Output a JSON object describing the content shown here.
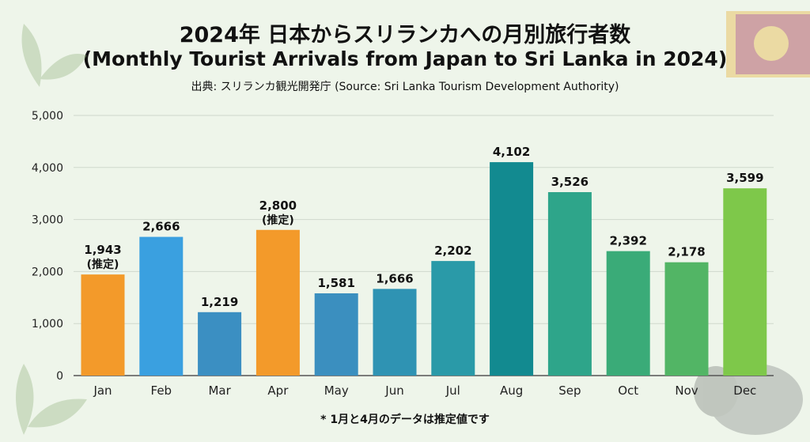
{
  "title": "2024年 日本からスリランカへの月別旅行者数",
  "subtitle": "(Monthly Tourist Arrivals from Japan to Sri Lanka in 2024)",
  "source": "出典: スリランカ観光開発庁 (Source: Sri Lanka Tourism Development Authority)",
  "footnote": "* 1月と4月のデータは推定値です",
  "decorations": [
    "tea-leaf-icon",
    "sri-lanka-flag-icon",
    "elephant-icon"
  ],
  "chart_data": {
    "type": "bar",
    "title": "2024年 日本からスリランカへの月別旅行者数",
    "categories": [
      "Jan",
      "Feb",
      "Mar",
      "Apr",
      "May",
      "Jun",
      "Jul",
      "Aug",
      "Sep",
      "Oct",
      "Nov",
      "Dec"
    ],
    "values": [
      1943,
      2666,
      1219,
      2800,
      1581,
      1666,
      2202,
      4102,
      3526,
      2392,
      2178,
      3599
    ],
    "data_labels": [
      "1,943",
      "2,666",
      "1,219",
      "2,800",
      "1,581",
      "1,666",
      "2,202",
      "4,102",
      "3,526",
      "2,392",
      "2,178",
      "3,599"
    ],
    "estimate_note": "(推定)",
    "estimated": [
      true,
      false,
      false,
      true,
      false,
      false,
      false,
      false,
      false,
      false,
      false,
      false
    ],
    "colors": [
      "#f39a2a",
      "#3aa0e0",
      "#3b8fc2",
      "#f39a2a",
      "#3b8fbf",
      "#2f93b3",
      "#2a9aa8",
      "#128a90",
      "#2ea58a",
      "#3aab78",
      "#52b565",
      "#7ec84a"
    ],
    "ylim": [
      0,
      5000
    ],
    "yticks": [
      0,
      1000,
      2000,
      3000,
      4000,
      5000
    ],
    "ytick_labels": [
      "0",
      "1,000",
      "2,000",
      "3,000",
      "4,000",
      "5,000"
    ],
    "grid": true,
    "xlabel": "",
    "ylabel": ""
  }
}
